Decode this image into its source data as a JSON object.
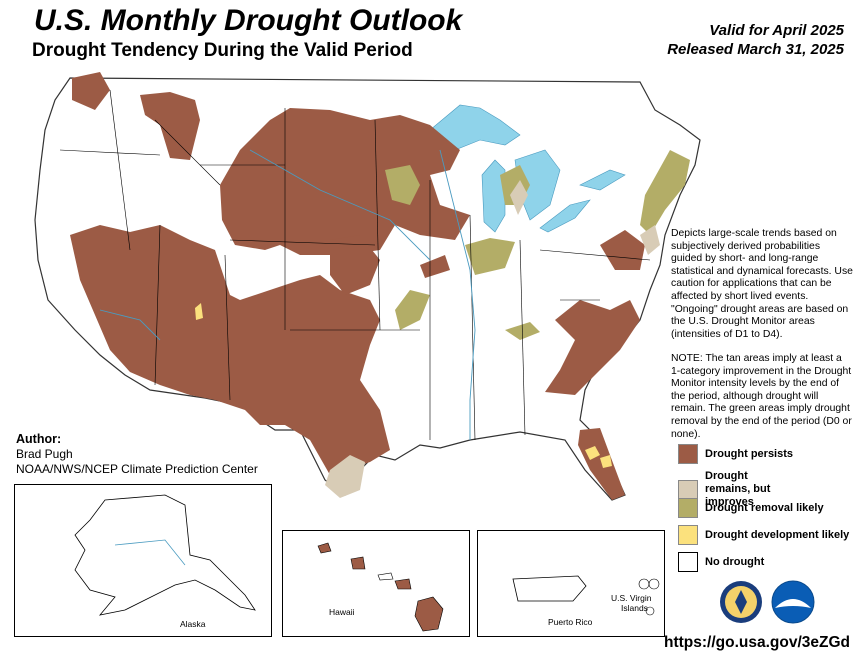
{
  "header": {
    "title": "U.S. Monthly Drought Outlook",
    "subtitle": "Drought Tendency During the Valid Period",
    "valid": "Valid for April 2025",
    "released": "Released March 31, 2025"
  },
  "description": "Depicts large-scale trends based on subjectively derived probabilities guided by short- and long-range statistical and dynamical forecasts. Use caution for applications that can be affected by short lived events. \"Ongoing\" drought areas are based on the U.S. Drought Monitor areas (intensities of D1 to D4).",
  "note": "NOTE: The tan areas imply at least a 1-category improvement in the Drought Monitor intensity levels by the end of the period, although drought will remain. The green areas imply drought removal by the end of the period (D0 or none).",
  "legend": [
    {
      "label": "Drought persists",
      "color": "#9c5b45"
    },
    {
      "label": "Drought remains, but improves",
      "color": "#d8ccb6"
    },
    {
      "label": "Drought removal likely",
      "color": "#b3ad67"
    },
    {
      "label": "Drought development likely",
      "color": "#fbe17d"
    },
    {
      "label": "No drought",
      "color": "#ffffff"
    }
  ],
  "author": {
    "heading": "Author:",
    "name": "Brad Pugh",
    "org": "NOAA/NWS/NCEP Climate Prediction Center"
  },
  "insets": {
    "alaska": "Alaska",
    "hawaii": "Hawaii",
    "puerto_rico": "Puerto Rico",
    "virgin_islands_line1": "U.S. Virgin",
    "virgin_islands_line2": "Islands"
  },
  "url": "https://go.usa.gov/3eZGd",
  "logos": [
    "commerce-seal",
    "noaa-logo"
  ],
  "colors": {
    "persists": "#9c5b45",
    "improves": "#d8ccb6",
    "removal": "#b3ad67",
    "development": "#fbe17d",
    "water": "#8fd3ea",
    "border": "#000000"
  }
}
